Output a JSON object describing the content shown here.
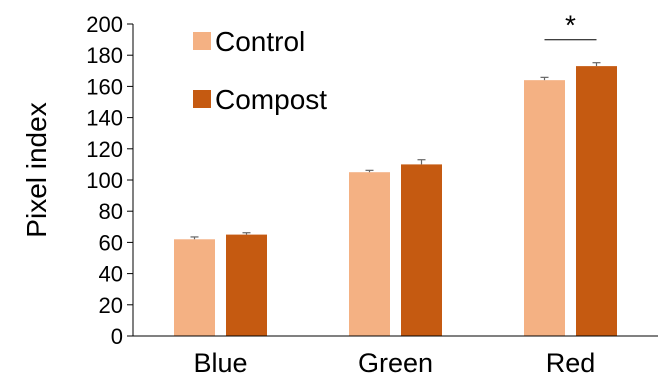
{
  "chart_data": {
    "type": "bar",
    "categories": [
      "Blue",
      "Green",
      "Red"
    ],
    "series": [
      {
        "name": "Control",
        "values": [
          62,
          105,
          164
        ],
        "errors": [
          1.5,
          1.2,
          1.8
        ],
        "color": "#F4B183"
      },
      {
        "name": "Compost",
        "values": [
          65,
          110,
          173
        ],
        "errors": [
          1.2,
          3.0,
          2.2
        ],
        "color": "#C55A11"
      }
    ],
    "ylabel": "Pixel index",
    "ylim": [
      0,
      200
    ],
    "yticks": [
      "0",
      "20",
      "40",
      "60",
      "80",
      "100",
      "120",
      "140",
      "160",
      "180",
      "200"
    ],
    "legend_placement": "top-left",
    "grid": false,
    "annotations": [
      {
        "text": "*",
        "category": "Red",
        "type": "significance-bracket"
      }
    ]
  }
}
